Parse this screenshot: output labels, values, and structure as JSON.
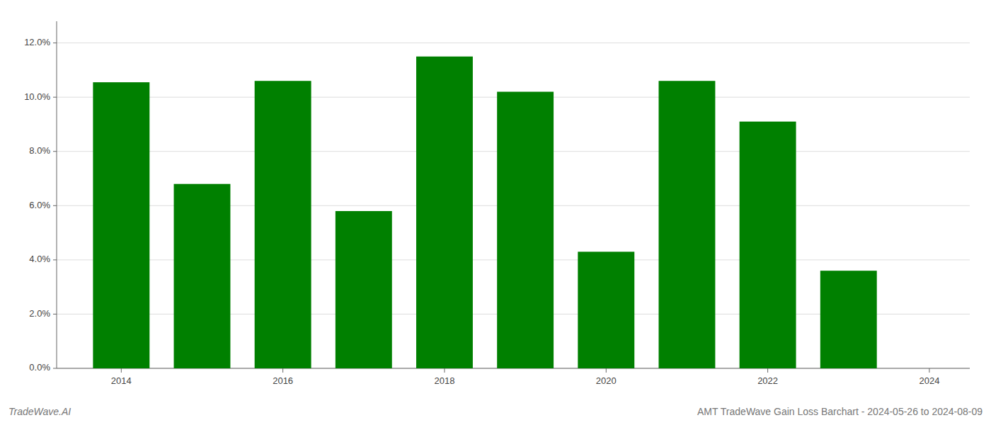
{
  "chart_data": {
    "type": "bar",
    "x": [
      2014,
      2015,
      2016,
      2017,
      2018,
      2019,
      2020,
      2021,
      2022,
      2023
    ],
    "values": [
      0.1055,
      0.068,
      0.106,
      0.058,
      0.115,
      0.102,
      0.043,
      0.106,
      0.091,
      0.036
    ],
    "color": "#008000",
    "xlim": [
      2013.2,
      2024.5
    ],
    "xticks": [
      2014,
      2016,
      2018,
      2020,
      2022,
      2024
    ],
    "ylim": [
      0,
      0.128
    ],
    "yticks": [
      {
        "value": 0.0,
        "label": "0.0%"
      },
      {
        "value": 0.02,
        "label": "2.0%"
      },
      {
        "value": 0.04,
        "label": "4.0%"
      },
      {
        "value": 0.06,
        "label": "6.0%"
      },
      {
        "value": 0.08,
        "label": "8.0%"
      },
      {
        "value": 0.1,
        "label": "10.0%"
      },
      {
        "value": 0.12,
        "label": "12.0%"
      }
    ],
    "grid": true,
    "annotations": [
      "TradeWave.AI",
      "AMT TradeWave Gain Loss Barchart - 2024-05-26 to 2024-08-09"
    ]
  }
}
